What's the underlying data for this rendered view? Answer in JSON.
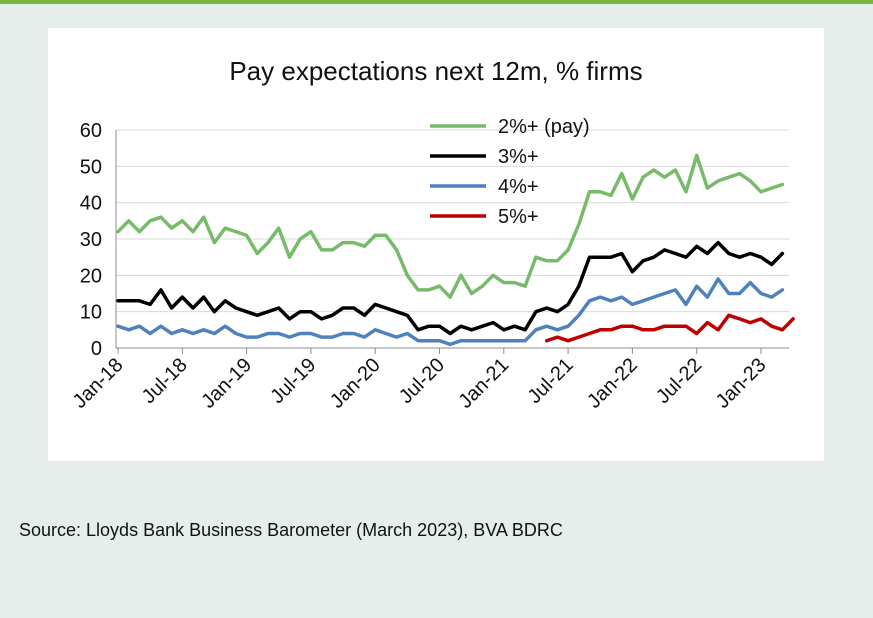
{
  "source_note": "Source: Lloyds Bank Business Barometer (March 2023), BVA BDRC",
  "colors": {
    "background": "#e5eeea",
    "accent_bar": "#7ab83a",
    "panel": "#ffffff",
    "grid": "#d9d9d9"
  },
  "chart_data": {
    "type": "line",
    "title": "Pay expectations next 12m, % firms",
    "xlabel": "",
    "ylabel": "",
    "ylim": [
      0,
      60
    ],
    "yticks": [
      "0",
      "10",
      "20",
      "30",
      "40",
      "50",
      "60"
    ],
    "grid": true,
    "legend_position": "top-center",
    "x_start": "Jan-18",
    "x_tick_labels": [
      "Jan-18",
      "Jul-18",
      "Jan-19",
      "Jul-19",
      "Jan-20",
      "Jul-20",
      "Jan-21",
      "Jul-21",
      "Jan-22",
      "Jul-22",
      "Jan-23"
    ],
    "series": [
      {
        "name": "2%+ (pay)",
        "color": "#77bb6a",
        "start_index": 0,
        "values": [
          32,
          35,
          32,
          35,
          36,
          33,
          35,
          32,
          36,
          29,
          33,
          32,
          31,
          26,
          29,
          33,
          25,
          30,
          32,
          27,
          27,
          29,
          29,
          28,
          31,
          31,
          27,
          20,
          16,
          16,
          17,
          14,
          20,
          15,
          17,
          20,
          18,
          18,
          17,
          25,
          24,
          24,
          27,
          34,
          43,
          43,
          42,
          48,
          41,
          47,
          49,
          47,
          49,
          43,
          53,
          44,
          46,
          47,
          48,
          46,
          43,
          44,
          45
        ]
      },
      {
        "name": "3%+",
        "color": "#000000",
        "start_index": 0,
        "values": [
          13,
          13,
          13,
          12,
          16,
          11,
          14,
          11,
          14,
          10,
          13,
          11,
          10,
          9,
          10,
          11,
          8,
          10,
          10,
          8,
          9,
          11,
          11,
          9,
          12,
          11,
          10,
          9,
          5,
          6,
          6,
          4,
          6,
          5,
          6,
          7,
          5,
          6,
          5,
          10,
          11,
          10,
          12,
          17,
          25,
          25,
          25,
          26,
          21,
          24,
          25,
          27,
          26,
          25,
          28,
          26,
          29,
          26,
          25,
          26,
          25,
          23,
          26
        ]
      },
      {
        "name": "4%+",
        "color": "#4f81bd",
        "start_index": 0,
        "values": [
          6,
          5,
          6,
          4,
          6,
          4,
          5,
          4,
          5,
          4,
          6,
          4,
          3,
          3,
          4,
          4,
          3,
          4,
          4,
          3,
          3,
          4,
          4,
          3,
          5,
          4,
          3,
          4,
          2,
          2,
          2,
          1,
          2,
          2,
          2,
          2,
          2,
          2,
          2,
          5,
          6,
          5,
          6,
          9,
          13,
          14,
          13,
          14,
          12,
          13,
          14,
          15,
          16,
          12,
          17,
          14,
          19,
          15,
          15,
          18,
          15,
          14,
          16
        ]
      },
      {
        "name": "5%+",
        "color": "#c00000",
        "start_index": 40,
        "values": [
          2,
          3,
          2,
          3,
          4,
          5,
          5,
          6,
          6,
          5,
          5,
          6,
          6,
          6,
          4,
          7,
          5,
          9,
          8,
          7,
          8,
          6,
          5,
          8
        ]
      }
    ]
  }
}
